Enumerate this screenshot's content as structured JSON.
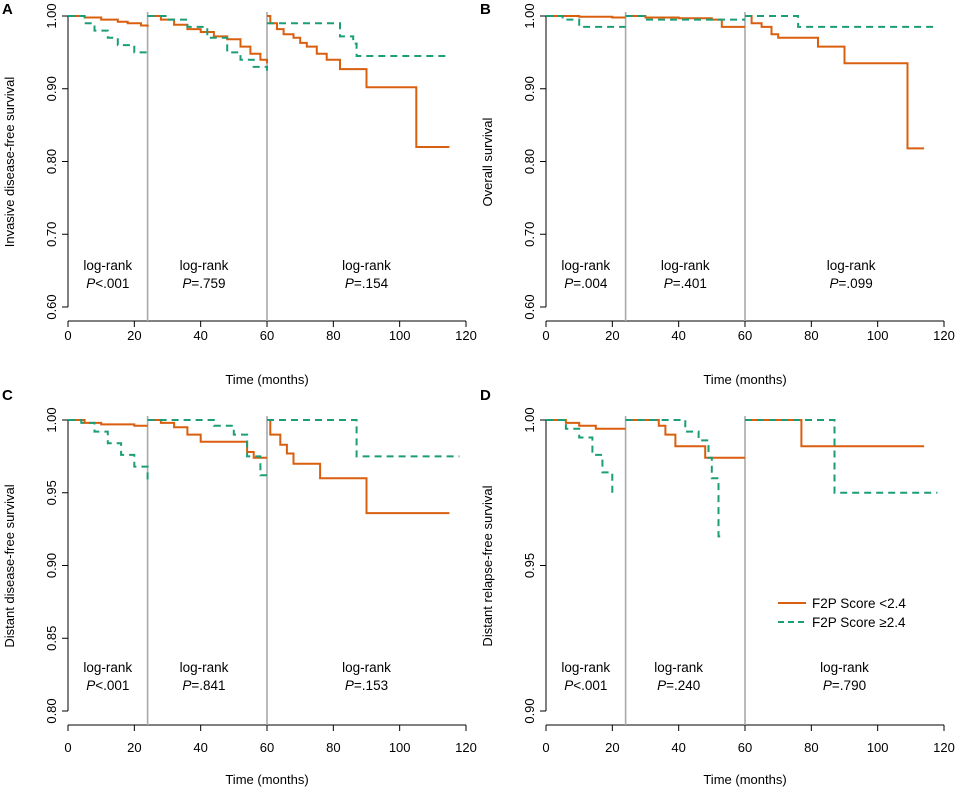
{
  "chart_data": [
    {
      "type": "line",
      "panel_label": "A",
      "ylabel": "Invasive disease-free survival",
      "xlabel": "Time (months)",
      "xlim": [
        0,
        120
      ],
      "ylim": [
        0.6,
        1.0
      ],
      "xticks": [
        "0",
        "20",
        "40",
        "60",
        "80",
        "100",
        "120"
      ],
      "yticks": [
        "0.60",
        "0.70",
        "0.80",
        "0.90",
        "1.00"
      ],
      "cut_times": [
        24,
        60
      ],
      "annotations": [
        {
          "line1": "log-rank",
          "line2": "P<.001",
          "x": 12
        },
        {
          "line1": "log-rank",
          "line2": "P=.759",
          "x": 41
        },
        {
          "line1": "log-rank",
          "line2": "P=.154",
          "x": 90
        }
      ],
      "series": [
        {
          "name": "F2P Score <2.4",
          "color": "#d95f0e",
          "dash": "",
          "segments": [
            [
              [
                0,
                1.0
              ],
              [
                5,
                0.998
              ],
              [
                10,
                0.995
              ],
              [
                15,
                0.992
              ],
              [
                18,
                0.99
              ],
              [
                22,
                0.987
              ],
              [
                24,
                0.985
              ]
            ],
            [
              [
                24,
                1.0
              ],
              [
                28,
                0.995
              ],
              [
                32,
                0.988
              ],
              [
                36,
                0.982
              ],
              [
                40,
                0.978
              ],
              [
                44,
                0.972
              ],
              [
                48,
                0.968
              ],
              [
                52,
                0.958
              ],
              [
                55,
                0.948
              ],
              [
                58,
                0.94
              ],
              [
                60,
                0.935
              ]
            ],
            [
              [
                60,
                1.0
              ],
              [
                61,
                0.99
              ],
              [
                63,
                0.982
              ],
              [
                65,
                0.975
              ],
              [
                68,
                0.97
              ],
              [
                70,
                0.963
              ],
              [
                72,
                0.958
              ],
              [
                75,
                0.948
              ],
              [
                78,
                0.94
              ],
              [
                82,
                0.927
              ],
              [
                90,
                0.902
              ],
              [
                105,
                0.82
              ],
              [
                115,
                0.82
              ]
            ]
          ]
        },
        {
          "name": "F2P Score ≥2.4",
          "color": "#1b9e77",
          "dash": "7,5",
          "segments": [
            [
              [
                0,
                1.0
              ],
              [
                5,
                0.99
              ],
              [
                8,
                0.98
              ],
              [
                12,
                0.97
              ],
              [
                15,
                0.96
              ],
              [
                20,
                0.95
              ],
              [
                24,
                0.945
              ]
            ],
            [
              [
                24,
                1.0
              ],
              [
                30,
                0.995
              ],
              [
                36,
                0.985
              ],
              [
                42,
                0.97
              ],
              [
                48,
                0.95
              ],
              [
                52,
                0.94
              ],
              [
                56,
                0.93
              ],
              [
                60,
                0.925
              ]
            ],
            [
              [
                60,
                0.99
              ],
              [
                80,
                0.99
              ],
              [
                82,
                0.972
              ],
              [
                86,
                0.962
              ],
              [
                87,
                0.945
              ],
              [
                115,
                0.945
              ]
            ]
          ]
        }
      ]
    },
    {
      "type": "line",
      "panel_label": "B",
      "ylabel": "Overall survival",
      "xlabel": "Time (months)",
      "xlim": [
        0,
        120
      ],
      "ylim": [
        0.6,
        1.0
      ],
      "xticks": [
        "0",
        "20",
        "40",
        "60",
        "80",
        "100",
        "120"
      ],
      "yticks": [
        "0.60",
        "0.70",
        "0.80",
        "0.90",
        "1.00"
      ],
      "cut_times": [
        24,
        60
      ],
      "annotations": [
        {
          "line1": "log-rank",
          "line2": "P=.004",
          "x": 12
        },
        {
          "line1": "log-rank",
          "line2": "P=.401",
          "x": 42
        },
        {
          "line1": "log-rank",
          "line2": "P=.099",
          "x": 92
        }
      ],
      "series": [
        {
          "name": "F2P Score <2.4",
          "color": "#d95f0e",
          "dash": "",
          "segments": [
            [
              [
                0,
                1.0
              ],
              [
                10,
                0.999
              ],
              [
                20,
                0.998
              ],
              [
                24,
                0.998
              ]
            ],
            [
              [
                24,
                1.0
              ],
              [
                30,
                0.998
              ],
              [
                40,
                0.997
              ],
              [
                50,
                0.995
              ],
              [
                53,
                0.985
              ],
              [
                60,
                0.985
              ]
            ],
            [
              [
                60,
                1.0
              ],
              [
                62,
                0.99
              ],
              [
                65,
                0.985
              ],
              [
                68,
                0.975
              ],
              [
                70,
                0.97
              ],
              [
                80,
                0.97
              ],
              [
                82,
                0.958
              ],
              [
                90,
                0.935
              ],
              [
                109,
                0.935
              ],
              [
                109,
                0.818
              ],
              [
                114,
                0.818
              ]
            ]
          ]
        },
        {
          "name": "F2P Score ≥2.4",
          "color": "#1b9e77",
          "dash": "7,5",
          "segments": [
            [
              [
                0,
                1.0
              ],
              [
                5,
                0.995
              ],
              [
                10,
                0.985
              ],
              [
                24,
                0.985
              ]
            ],
            [
              [
                24,
                1.0
              ],
              [
                30,
                0.995
              ],
              [
                60,
                0.995
              ]
            ],
            [
              [
                60,
                1.0
              ],
              [
                74,
                1.0
              ],
              [
                76,
                0.985
              ],
              [
                118,
                0.985
              ]
            ]
          ]
        }
      ]
    },
    {
      "type": "line",
      "panel_label": "C",
      "ylabel": "Distant disease-free survival",
      "xlabel": "Time (months)",
      "xlim": [
        0,
        120
      ],
      "ylim": [
        0.8,
        1.0
      ],
      "xticks": [
        "0",
        "20",
        "40",
        "60",
        "80",
        "100",
        "120"
      ],
      "yticks": [
        "0.80",
        "0.85",
        "0.90",
        "0.95",
        "1.00"
      ],
      "cut_times": [
        24,
        60
      ],
      "annotations": [
        {
          "line1": "log-rank",
          "line2": "P<.001",
          "x": 12
        },
        {
          "line1": "log-rank",
          "line2": "P=.841",
          "x": 41
        },
        {
          "line1": "log-rank",
          "line2": "P=.153",
          "x": 90
        }
      ],
      "series": [
        {
          "name": "F2P Score <2.4",
          "color": "#d95f0e",
          "dash": "",
          "segments": [
            [
              [
                0,
                1.0
              ],
              [
                5,
                0.998
              ],
              [
                10,
                0.997
              ],
              [
                20,
                0.996
              ],
              [
                24,
                0.996
              ]
            ],
            [
              [
                24,
                1.0
              ],
              [
                28,
                0.998
              ],
              [
                32,
                0.995
              ],
              [
                36,
                0.99
              ],
              [
                40,
                0.985
              ],
              [
                50,
                0.985
              ],
              [
                54,
                0.978
              ],
              [
                56,
                0.974
              ],
              [
                60,
                0.974
              ]
            ],
            [
              [
                60,
                1.0
              ],
              [
                61,
                0.99
              ],
              [
                64,
                0.983
              ],
              [
                66,
                0.977
              ],
              [
                68,
                0.97
              ],
              [
                76,
                0.96
              ],
              [
                90,
                0.96
              ],
              [
                90,
                0.936
              ],
              [
                115,
                0.936
              ]
            ]
          ]
        },
        {
          "name": "F2P Score ≥2.4",
          "color": "#1b9e77",
          "dash": "7,5",
          "segments": [
            [
              [
                0,
                1.0
              ],
              [
                4,
                0.998
              ],
              [
                8,
                0.992
              ],
              [
                12,
                0.984
              ],
              [
                16,
                0.976
              ],
              [
                20,
                0.968
              ],
              [
                24,
                0.957
              ]
            ],
            [
              [
                24,
                1.0
              ],
              [
                42,
                1.0
              ],
              [
                44,
                0.996
              ],
              [
                50,
                0.99
              ],
              [
                54,
                0.975
              ],
              [
                58,
                0.962
              ],
              [
                60,
                0.962
              ]
            ],
            [
              [
                60,
                1.0
              ],
              [
                86,
                1.0
              ],
              [
                87,
                0.975
              ],
              [
                118,
                0.975
              ]
            ]
          ]
        }
      ]
    },
    {
      "type": "line",
      "panel_label": "D",
      "ylabel": "Distant relapse-free survival",
      "xlabel": "Time (months)",
      "xlim": [
        0,
        120
      ],
      "ylim": [
        0.9,
        1.0
      ],
      "xticks": [
        "0",
        "20",
        "40",
        "60",
        "80",
        "100",
        "120"
      ],
      "yticks": [
        "0.90",
        "0.95",
        "1.00"
      ],
      "cut_times": [
        24,
        60
      ],
      "annotations": [
        {
          "line1": "log-rank",
          "line2": "P<.001",
          "x": 12
        },
        {
          "line1": "log-rank",
          "line2": "P=.240",
          "x": 40
        },
        {
          "line1": "log-rank",
          "line2": "P=.790",
          "x": 90
        }
      ],
      "legend": {
        "position": "center-right"
      },
      "series": [
        {
          "name": "F2P Score <2.4",
          "color": "#d95f0e",
          "dash": "",
          "segments": [
            [
              [
                0,
                1.0
              ],
              [
                6,
                0.999
              ],
              [
                10,
                0.998
              ],
              [
                15,
                0.997
              ],
              [
                24,
                0.997
              ]
            ],
            [
              [
                24,
                1.0
              ],
              [
                32,
                1.0
              ],
              [
                34,
                0.998
              ],
              [
                36,
                0.995
              ],
              [
                39,
                0.991
              ],
              [
                45,
                0.991
              ],
              [
                48,
                0.987
              ],
              [
                60,
                0.987
              ]
            ],
            [
              [
                60,
                1.0
              ],
              [
                76,
                1.0
              ],
              [
                77,
                0.991
              ],
              [
                114,
                0.991
              ]
            ]
          ]
        },
        {
          "name": "F2P Score ≥2.4",
          "color": "#1b9e77",
          "dash": "7,5",
          "segments": [
            [
              [
                0,
                1.0
              ],
              [
                6,
                0.997
              ],
              [
                10,
                0.994
              ],
              [
                14,
                0.988
              ],
              [
                17,
                0.982
              ],
              [
                20,
                0.975
              ],
              [
                21,
                0.975
              ]
            ],
            [
              [
                24,
                1.0
              ],
              [
                40,
                1.0
              ],
              [
                42,
                0.996
              ],
              [
                46,
                0.993
              ],
              [
                49,
                0.987
              ],
              [
                50,
                0.98
              ],
              [
                52,
                0.96
              ],
              [
                54,
                0.96
              ]
            ],
            [
              [
                60,
                1.0
              ],
              [
                86,
                1.0
              ],
              [
                87,
                0.975
              ],
              [
                118,
                0.975
              ]
            ]
          ]
        }
      ]
    }
  ]
}
